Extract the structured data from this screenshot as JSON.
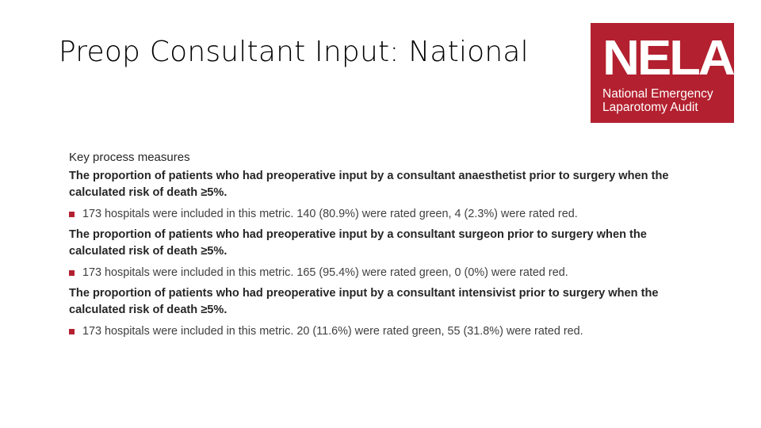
{
  "slide": {
    "title": "Preop Consultant Input: National"
  },
  "logo": {
    "word": "NELA",
    "line1": "National Emergency",
    "line2": "Laparotomy Audit",
    "background_color": "#b3202f"
  },
  "content": {
    "heading": "Key process measures",
    "bullet_color": "#b3202f",
    "measures": [
      {
        "title": "The proportion of patients who had preoperative input by a consultant anaesthetist prior to surgery when the calculated risk of death ≥5%.",
        "detail": "173 hospitals were included in this metric. 140 (80.9%) were rated green, 4 (2.3%) were rated red."
      },
      {
        "title": "The proportion of patients who had preoperative input by a consultant surgeon prior to surgery when the calculated risk of death ≥5%.",
        "detail": "173 hospitals were included in this metric. 165 (95.4%) were rated green, 0 (0%) were rated red."
      },
      {
        "title": "The proportion of patients who had preoperative input by a consultant intensivist prior to surgery when the calculated risk of death ≥5%.",
        "detail": "173 hospitals were included in this metric. 20 (11.6%) were rated green, 55 (31.8%) were rated red."
      }
    ]
  }
}
